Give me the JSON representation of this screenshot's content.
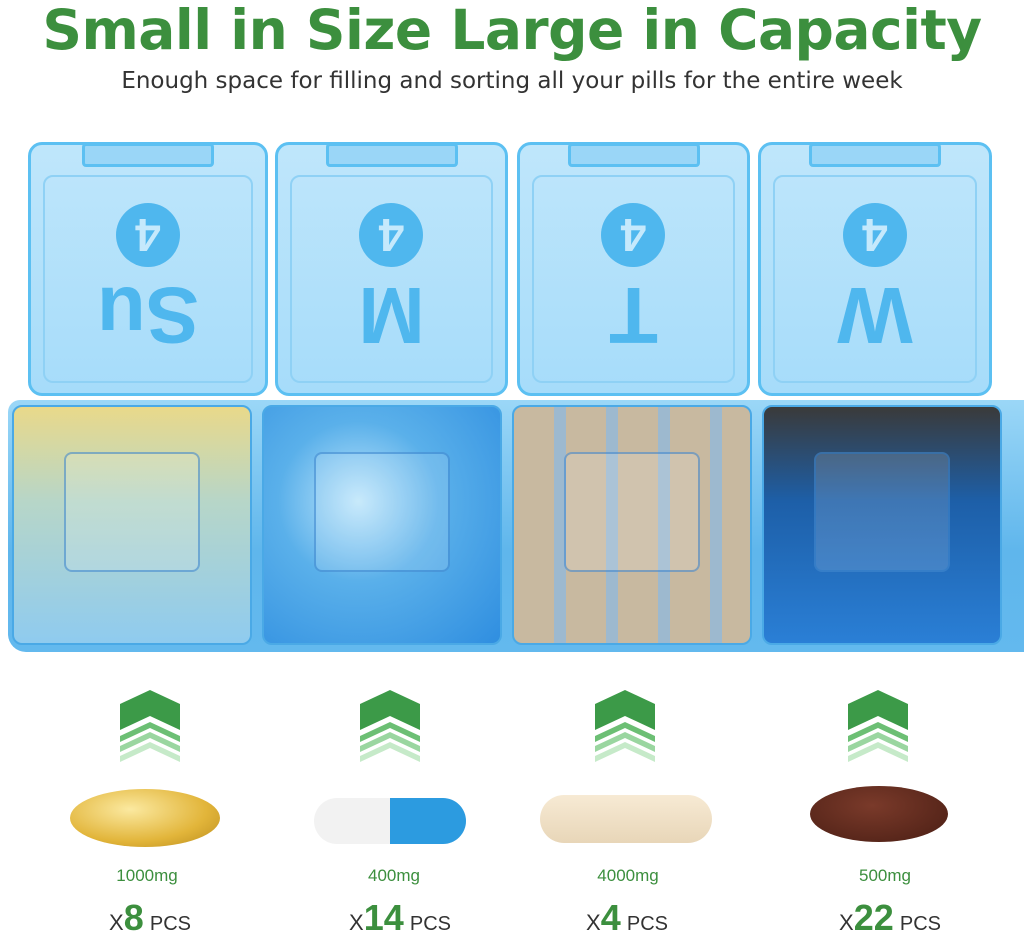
{
  "headline": "Small in Size Large in Capacity",
  "subheadline": "Enough space for filling and sorting all your pills for the entire week",
  "lids": [
    {
      "day": "Su",
      "number": "4"
    },
    {
      "day": "M",
      "number": "4"
    },
    {
      "day": "T",
      "number": "4"
    },
    {
      "day": "W",
      "number": "4"
    }
  ],
  "pills": [
    {
      "dose": "1000mg",
      "x": "X",
      "count": "8",
      "unit": "PCS",
      "type": "softgel"
    },
    {
      "dose": "400mg",
      "x": "X",
      "count": "14",
      "unit": "PCS",
      "type": "capsule"
    },
    {
      "dose": "4000mg",
      "x": "X",
      "count": "4",
      "unit": "PCS",
      "type": "tablet"
    },
    {
      "dose": "500mg",
      "x": "X",
      "count": "22",
      "unit": "PCS",
      "type": "round tablet"
    }
  ],
  "colors": {
    "green": "#3c8f3e",
    "case_blue": "#5cc0f2"
  }
}
